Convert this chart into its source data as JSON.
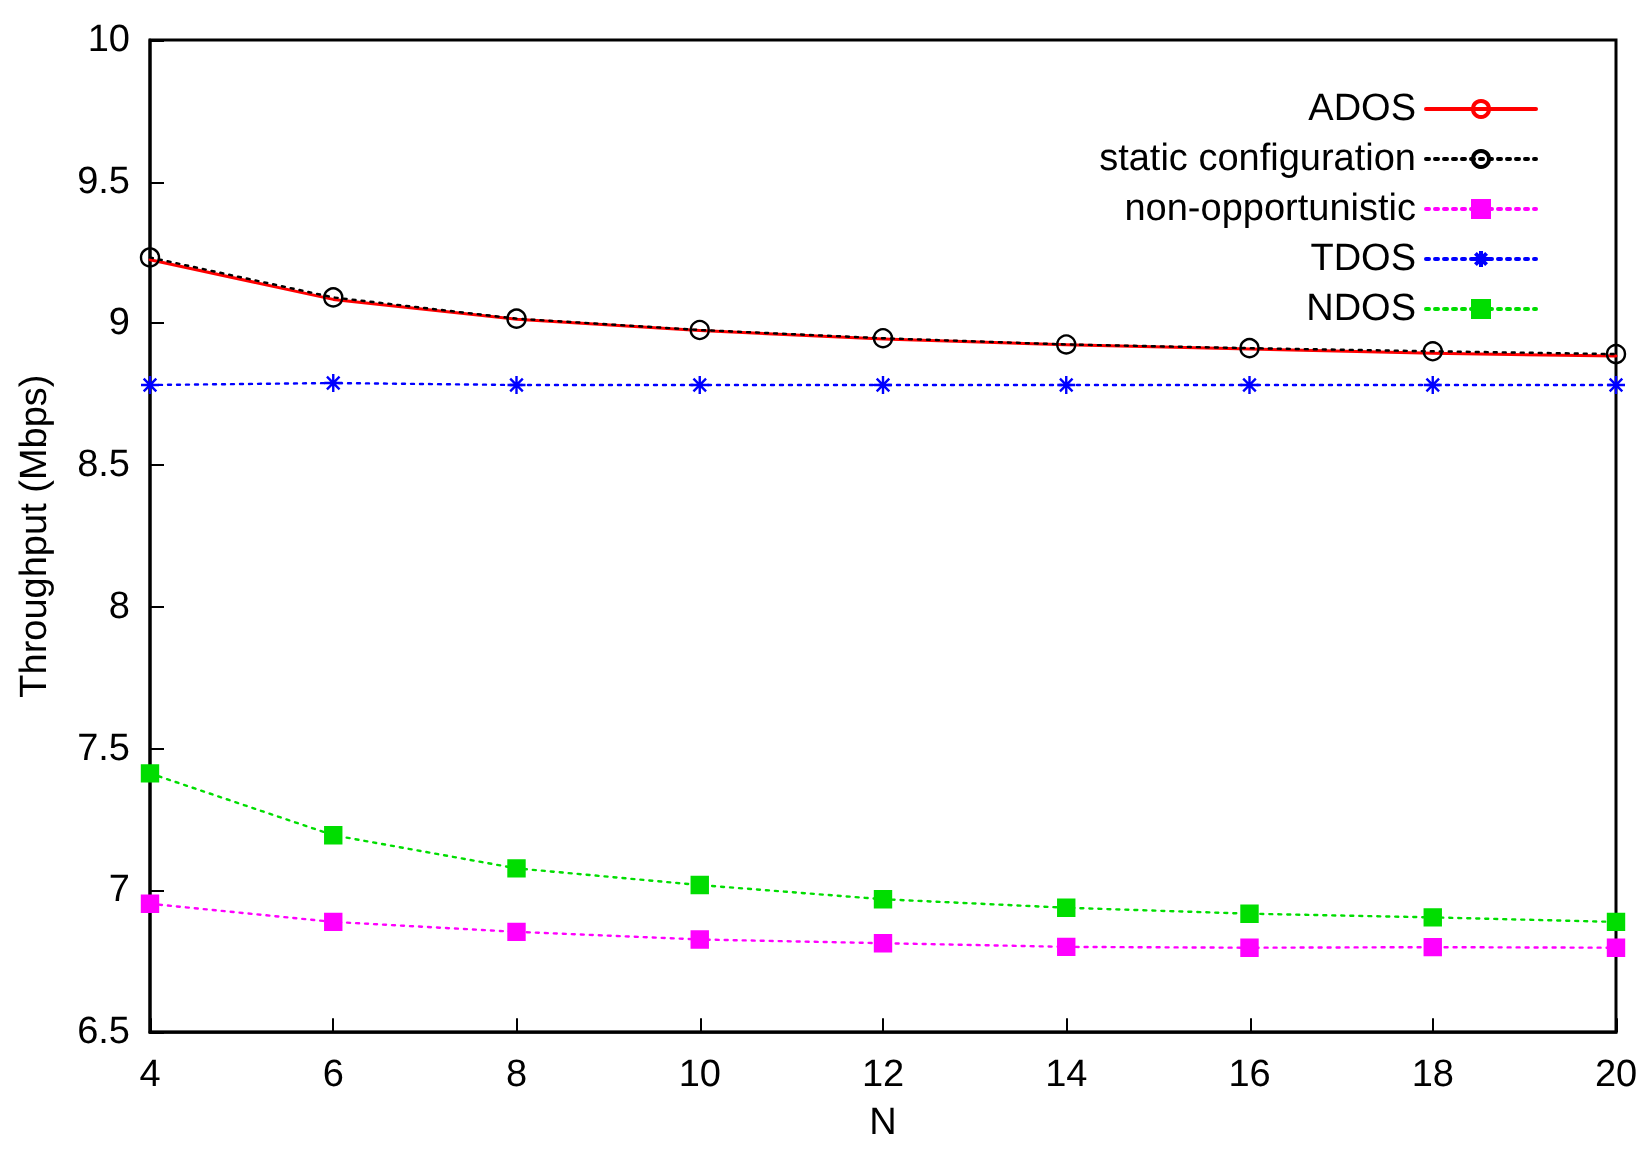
{
  "chart_data": {
    "type": "line",
    "xlabel": "N",
    "ylabel": "Throughput (Mbps)",
    "x": [
      4,
      6,
      8,
      10,
      12,
      14,
      16,
      18,
      20
    ],
    "series": [
      {
        "name": "ADOS",
        "color": "#ff0000",
        "marker": "none",
        "line_style": "solid",
        "values": [
          9.225,
          9.085,
          9.015,
          8.975,
          8.945,
          8.925,
          8.91,
          8.895,
          8.885
        ]
      },
      {
        "name": "static configuration",
        "color": "#000000",
        "marker": "circle",
        "line_style": "dotted",
        "values": [
          9.233,
          9.092,
          9.017,
          8.977,
          8.948,
          8.926,
          8.913,
          8.902,
          8.892
        ]
      },
      {
        "name": "non-opportunistic",
        "color": "#ff00ff",
        "marker": "square",
        "line_style": "dotted",
        "values": [
          6.953,
          6.889,
          6.854,
          6.827,
          6.814,
          6.801,
          6.798,
          6.8,
          6.798
        ]
      },
      {
        "name": "TDOS",
        "color": "#0000ff",
        "marker": "cross",
        "line_style": "dotted",
        "values": [
          8.783,
          8.79,
          8.783,
          8.783,
          8.783,
          8.783,
          8.783,
          8.783,
          8.783
        ]
      },
      {
        "name": "NDOS",
        "color": "#00dd00",
        "marker": "square",
        "line_style": "dotted",
        "values": [
          7.413,
          7.195,
          7.078,
          7.019,
          6.969,
          6.939,
          6.918,
          6.905,
          6.889
        ]
      }
    ],
    "xlim": [
      4,
      20
    ],
    "xticks": [
      4,
      6,
      8,
      10,
      12,
      14,
      16,
      18,
      20
    ],
    "ylim": [
      6.5,
      10
    ],
    "yticks": [
      6.5,
      7,
      7.5,
      8,
      8.5,
      9,
      9.5,
      10
    ],
    "grid": false,
    "legend": "top right"
  }
}
